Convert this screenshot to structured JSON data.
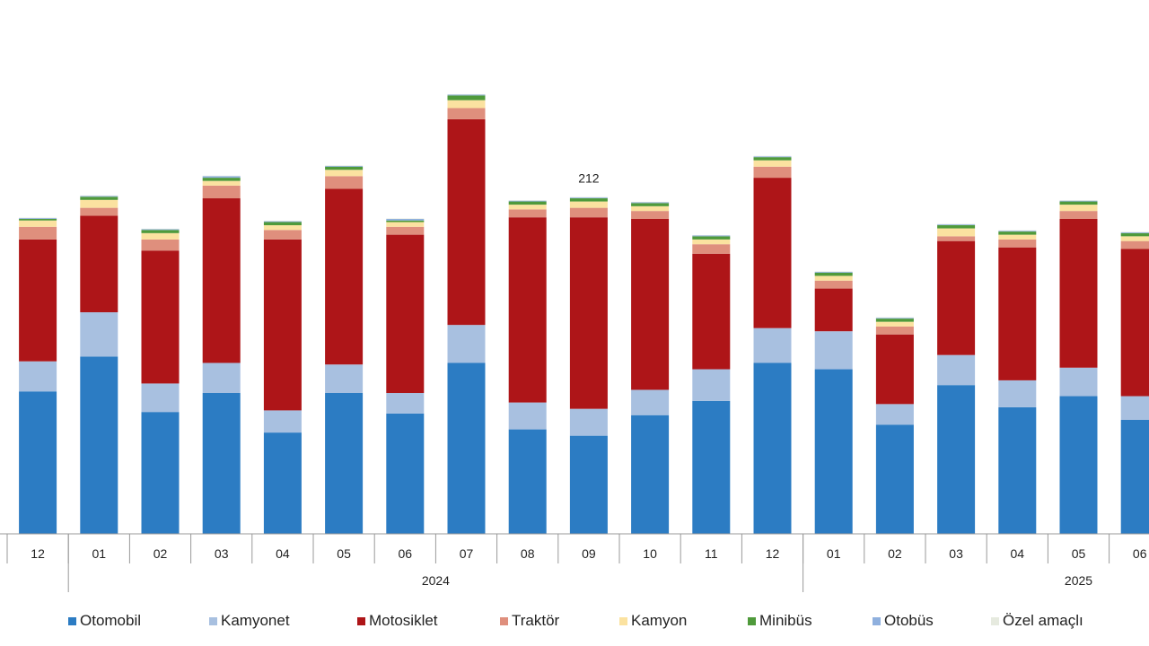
{
  "chart_data": {
    "type": "bar",
    "stacked": true,
    "title": "",
    "xlabel": "",
    "ylabel": "",
    "categories": [
      "12",
      "01",
      "02",
      "03",
      "04",
      "05",
      "06",
      "07",
      "08",
      "09",
      "10",
      "11",
      "12",
      "01",
      "02",
      "03",
      "04",
      "05",
      "06"
    ],
    "year_groups": [
      {
        "label": "",
        "count": 1
      },
      {
        "label": "2024",
        "count": 12
      },
      {
        "label": "2025",
        "count": 6
      }
    ],
    "annotations": [
      {
        "category_index": 9,
        "text": "212"
      }
    ],
    "grid": false,
    "legend_position": "bottom",
    "series": [
      {
        "name": "Otomobil",
        "color": "#2c7cc3",
        "values": [
          90,
          112,
          77,
          89,
          64,
          89,
          76,
          108,
          66,
          62,
          75,
          84,
          108,
          104,
          69,
          94,
          80,
          87,
          72
        ]
      },
      {
        "name": "Kamyonet",
        "color": "#a8c0e0",
        "values": [
          19,
          28,
          18,
          19,
          14,
          18,
          13,
          24,
          17,
          17,
          16,
          20,
          22,
          24,
          13,
          19,
          17,
          18,
          15
        ]
      },
      {
        "name": "Motosiklet",
        "color": "#ae1518",
        "values": [
          77,
          61,
          84,
          104,
          108,
          111,
          100,
          130,
          117,
          121,
          108,
          73,
          95,
          27,
          44,
          72,
          84,
          94,
          93
        ]
      },
      {
        "name": "Traktör",
        "color": "#df8f7d",
        "values": [
          8,
          5,
          7,
          8,
          6,
          8,
          5,
          7,
          5,
          6,
          5,
          6,
          7,
          5,
          5,
          3,
          5,
          5,
          5
        ]
      },
      {
        "name": "Kamyon",
        "color": "#fbe2a0",
        "values": [
          4,
          5,
          4,
          3,
          3,
          4,
          3,
          5,
          3,
          4,
          3,
          3,
          4,
          3,
          3,
          5,
          3,
          4,
          3
        ]
      },
      {
        "name": "Minibüs",
        "color": "#4f9a3b",
        "values": [
          1,
          2,
          2,
          2,
          2,
          2,
          1,
          3,
          2,
          2,
          2,
          2,
          2,
          2,
          2,
          2,
          2,
          2,
          2
        ]
      },
      {
        "name": "Otobüs",
        "color": "#8fb0de",
        "values": [
          0.5,
          0.5,
          0.5,
          1,
          0.5,
          0.5,
          1,
          0.5,
          0.5,
          0.5,
          0.5,
          0.5,
          0.5,
          0.5,
          0.5,
          0.5,
          0.5,
          0.5,
          0.5
        ]
      },
      {
        "name": "Özel amaçlı",
        "color": "#e6eadf",
        "values": [
          0.3,
          0.3,
          0.3,
          0.3,
          0.3,
          0.3,
          0.3,
          0.3,
          0.3,
          0.3,
          0.3,
          0.3,
          0.3,
          0.3,
          0.3,
          0.3,
          0.3,
          0.3,
          0.3
        ]
      }
    ]
  }
}
